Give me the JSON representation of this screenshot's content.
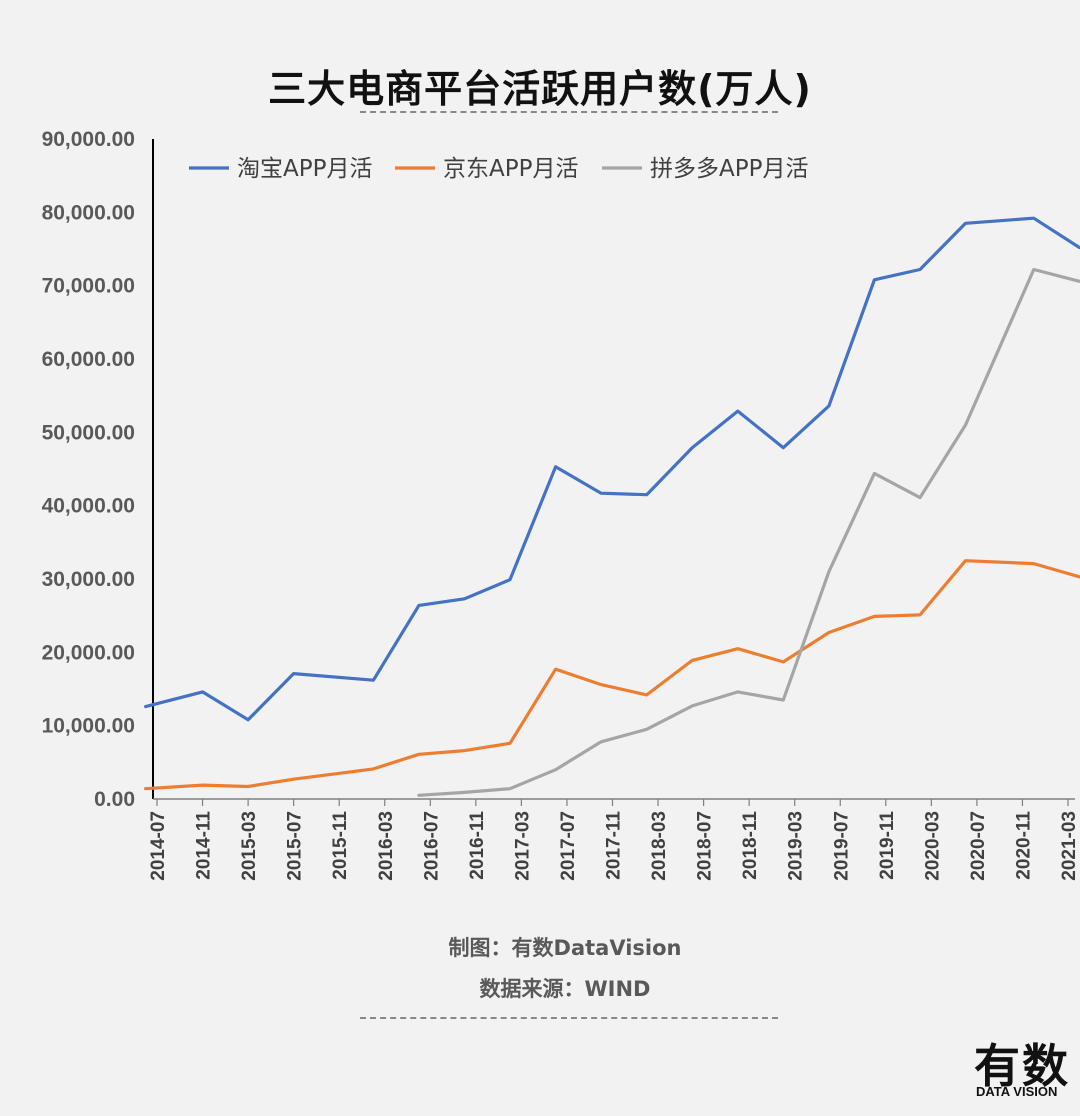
{
  "title": "三大电商平台活跃用户数(万人)",
  "credits": {
    "maker": "制图：有数DataVision",
    "source": "数据来源：WIND"
  },
  "logo": {
    "cn": "有数",
    "en": "DATA VISION"
  },
  "colors": {
    "taobao": "#4472c4",
    "jd": "#ed7d31",
    "pdd": "#a5a5a5"
  },
  "chart_data": {
    "type": "line",
    "title": "三大电商平台活跃用户数(万人)",
    "ylim": [
      0,
      90000
    ],
    "yticks": [
      "0.00",
      "10,000.00",
      "20,000.00",
      "30,000.00",
      "40,000.00",
      "50,000.00",
      "60,000.00",
      "70,000.00",
      "80,000.00",
      "90,000.00"
    ],
    "x": [
      "2014-07",
      "2014-11",
      "2015-03",
      "2015-07",
      "2015-11",
      "2016-03",
      "2016-07",
      "2016-11",
      "2017-03",
      "2017-07",
      "2017-11",
      "2018-03",
      "2018-07",
      "2018-11",
      "2019-03",
      "2019-07",
      "2019-11",
      "2020-03",
      "2020-07",
      "2020-11",
      "2021-03"
    ],
    "legend_position": "top",
    "grid": false,
    "series": [
      {
        "name": "淘宝APP月活",
        "color": "#4472c4",
        "points": [
          [
            "2014-06",
            12600
          ],
          [
            "2014-11",
            14600
          ],
          [
            "2015-03",
            10800
          ],
          [
            "2015-07",
            17100
          ],
          [
            "2016-02",
            16200
          ],
          [
            "2016-06",
            26400
          ],
          [
            "2016-10",
            27300
          ],
          [
            "2017-02",
            29900
          ],
          [
            "2017-06",
            45300
          ],
          [
            "2017-10",
            41700
          ],
          [
            "2018-02",
            41500
          ],
          [
            "2018-06",
            47900
          ],
          [
            "2018-10",
            52900
          ],
          [
            "2019-02",
            47900
          ],
          [
            "2019-06",
            53600
          ],
          [
            "2019-10",
            70800
          ],
          [
            "2020-02",
            72200
          ],
          [
            "2020-06",
            78500
          ],
          [
            "2020-12",
            79200
          ],
          [
            "2021-04",
            75200
          ]
        ]
      },
      {
        "name": "京东APP月活",
        "color": "#ed7d31",
        "points": [
          [
            "2014-06",
            1400
          ],
          [
            "2014-11",
            1900
          ],
          [
            "2015-03",
            1700
          ],
          [
            "2015-07",
            2700
          ],
          [
            "2016-02",
            4100
          ],
          [
            "2016-06",
            6100
          ],
          [
            "2016-10",
            6600
          ],
          [
            "2017-02",
            7600
          ],
          [
            "2017-06",
            17700
          ],
          [
            "2017-10",
            15600
          ],
          [
            "2018-02",
            14200
          ],
          [
            "2018-06",
            18900
          ],
          [
            "2018-10",
            20500
          ],
          [
            "2019-02",
            18700
          ],
          [
            "2019-06",
            22700
          ],
          [
            "2019-10",
            24900
          ],
          [
            "2020-02",
            25100
          ],
          [
            "2020-06",
            32500
          ],
          [
            "2020-12",
            32100
          ],
          [
            "2021-04",
            30300
          ]
        ]
      },
      {
        "name": "拼多多APP月活",
        "color": "#a5a5a5",
        "points": [
          [
            "2016-06",
            500
          ],
          [
            "2016-10",
            900
          ],
          [
            "2017-02",
            1400
          ],
          [
            "2017-06",
            4000
          ],
          [
            "2017-10",
            7800
          ],
          [
            "2018-02",
            9500
          ],
          [
            "2018-06",
            12700
          ],
          [
            "2018-10",
            14600
          ],
          [
            "2019-02",
            13500
          ],
          [
            "2019-06",
            31000
          ],
          [
            "2019-10",
            44400
          ],
          [
            "2020-02",
            41100
          ],
          [
            "2020-06",
            51000
          ],
          [
            "2020-12",
            72200
          ],
          [
            "2021-04",
            70600
          ]
        ]
      }
    ]
  }
}
